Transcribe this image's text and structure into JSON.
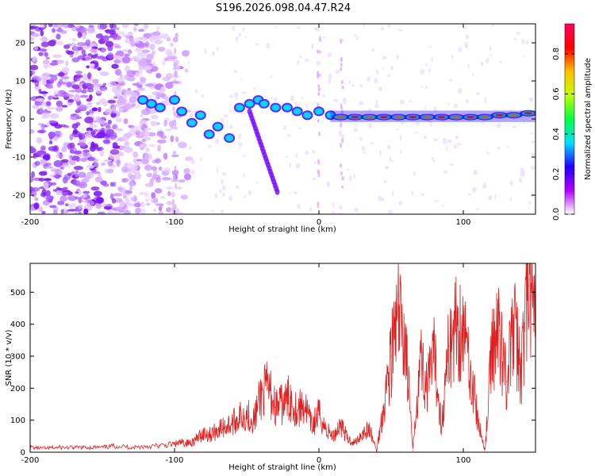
{
  "title": "S196.2026.098.04.47.R24",
  "chart_data": [
    {
      "type": "heatmap",
      "name": "spectrogram",
      "xlabel": "Height of straight line (km)",
      "ylabel": "Frequency (Hz)",
      "xlim": [
        -200,
        150
      ],
      "ylim": [
        -25,
        25
      ],
      "xticks": [
        -200,
        -100,
        0,
        100
      ],
      "xtick_labels": [
        "-200",
        "-100",
        "0",
        "100"
      ],
      "yticks": [
        -20,
        -10,
        0,
        10,
        20
      ],
      "ytick_labels": [
        "-20",
        "-10",
        "0",
        "10",
        "20"
      ],
      "ridge_points": [
        {
          "x": -122,
          "y": 5
        },
        {
          "x": -116,
          "y": 4
        },
        {
          "x": -110,
          "y": 3
        },
        {
          "x": -100,
          "y": 5
        },
        {
          "x": -95,
          "y": 2
        },
        {
          "x": -88,
          "y": -1
        },
        {
          "x": -82,
          "y": 1
        },
        {
          "x": -76,
          "y": -4
        },
        {
          "x": -70,
          "y": -2
        },
        {
          "x": -62,
          "y": -5
        },
        {
          "x": -55,
          "y": 3
        },
        {
          "x": -48,
          "y": 4
        },
        {
          "x": -42,
          "y": 5
        },
        {
          "x": -38,
          "y": 4
        },
        {
          "x": -30,
          "y": 3
        },
        {
          "x": -22,
          "y": 3
        },
        {
          "x": -15,
          "y": 2
        },
        {
          "x": -8,
          "y": 1
        },
        {
          "x": 0,
          "y": 2
        },
        {
          "x": 8,
          "y": 1
        },
        {
          "x": 15,
          "y": 0.5
        },
        {
          "x": 25,
          "y": 0.5
        },
        {
          "x": 35,
          "y": 0.5
        },
        {
          "x": 45,
          "y": 0.5
        },
        {
          "x": 55,
          "y": 0.5
        },
        {
          "x": 65,
          "y": 0.5
        },
        {
          "x": 75,
          "y": 0.5
        },
        {
          "x": 85,
          "y": 0.5
        },
        {
          "x": 95,
          "y": 0.5
        },
        {
          "x": 105,
          "y": 0.5
        },
        {
          "x": 115,
          "y": 0.5
        },
        {
          "x": 125,
          "y": 1
        },
        {
          "x": 135,
          "y": 1
        },
        {
          "x": 145,
          "y": 1.5
        }
      ],
      "vertical_streaks_x": [
        16,
        0,
        -100
      ],
      "colorbar": {
        "label": "Normalized spectral amplitude",
        "range": [
          0,
          0.95
        ],
        "ticks": [
          0.0,
          0.2,
          0.4,
          0.6,
          0.8
        ],
        "tick_labels": [
          "0.0",
          "0.2",
          "0.4",
          "0.6",
          "0.8"
        ],
        "colors": [
          "#ffffff",
          "#b000ff",
          "#2000ff",
          "#00e0ff",
          "#00ff40",
          "#c0ff00",
          "#ffc000",
          "#ff0000",
          "#ff0060"
        ]
      }
    },
    {
      "type": "line",
      "name": "snr",
      "xlabel": "Height of straight line (km)",
      "ylabel": "SNR (10 * v/v)",
      "xlim": [
        -200,
        150
      ],
      "ylim": [
        0,
        590
      ],
      "xticks": [
        -200,
        -100,
        0,
        100
      ],
      "xtick_labels": [
        "-200",
        "-100",
        "0",
        "100"
      ],
      "yticks": [
        0,
        100,
        200,
        300,
        400,
        500
      ],
      "ytick_labels": [
        "0",
        "100",
        "200",
        "300",
        "400",
        "500"
      ],
      "color": "#e02020",
      "x": [
        -200,
        -190,
        -180,
        -170,
        -160,
        -150,
        -140,
        -130,
        -120,
        -110,
        -100,
        -95,
        -90,
        -85,
        -80,
        -75,
        -70,
        -65,
        -60,
        -55,
        -50,
        -45,
        -40,
        -35,
        -30,
        -25,
        -20,
        -15,
        -10,
        -5,
        0,
        5,
        10,
        15,
        20,
        25,
        30,
        35,
        40,
        45,
        50,
        55,
        60,
        65,
        70,
        75,
        80,
        85,
        90,
        95,
        100,
        105,
        110,
        115,
        120,
        125,
        130,
        135,
        140,
        145,
        150
      ],
      "y": [
        15,
        12,
        15,
        14,
        15,
        15,
        20,
        15,
        18,
        20,
        25,
        30,
        28,
        40,
        60,
        55,
        70,
        80,
        90,
        110,
        120,
        100,
        180,
        200,
        140,
        150,
        170,
        130,
        150,
        80,
        120,
        70,
        50,
        90,
        40,
        30,
        60,
        70,
        5,
        150,
        300,
        420,
        350,
        5,
        300,
        200,
        300,
        80,
        330,
        400,
        380,
        260,
        100,
        5,
        330,
        380,
        220,
        400,
        250,
        520,
        380
      ]
    }
  ]
}
